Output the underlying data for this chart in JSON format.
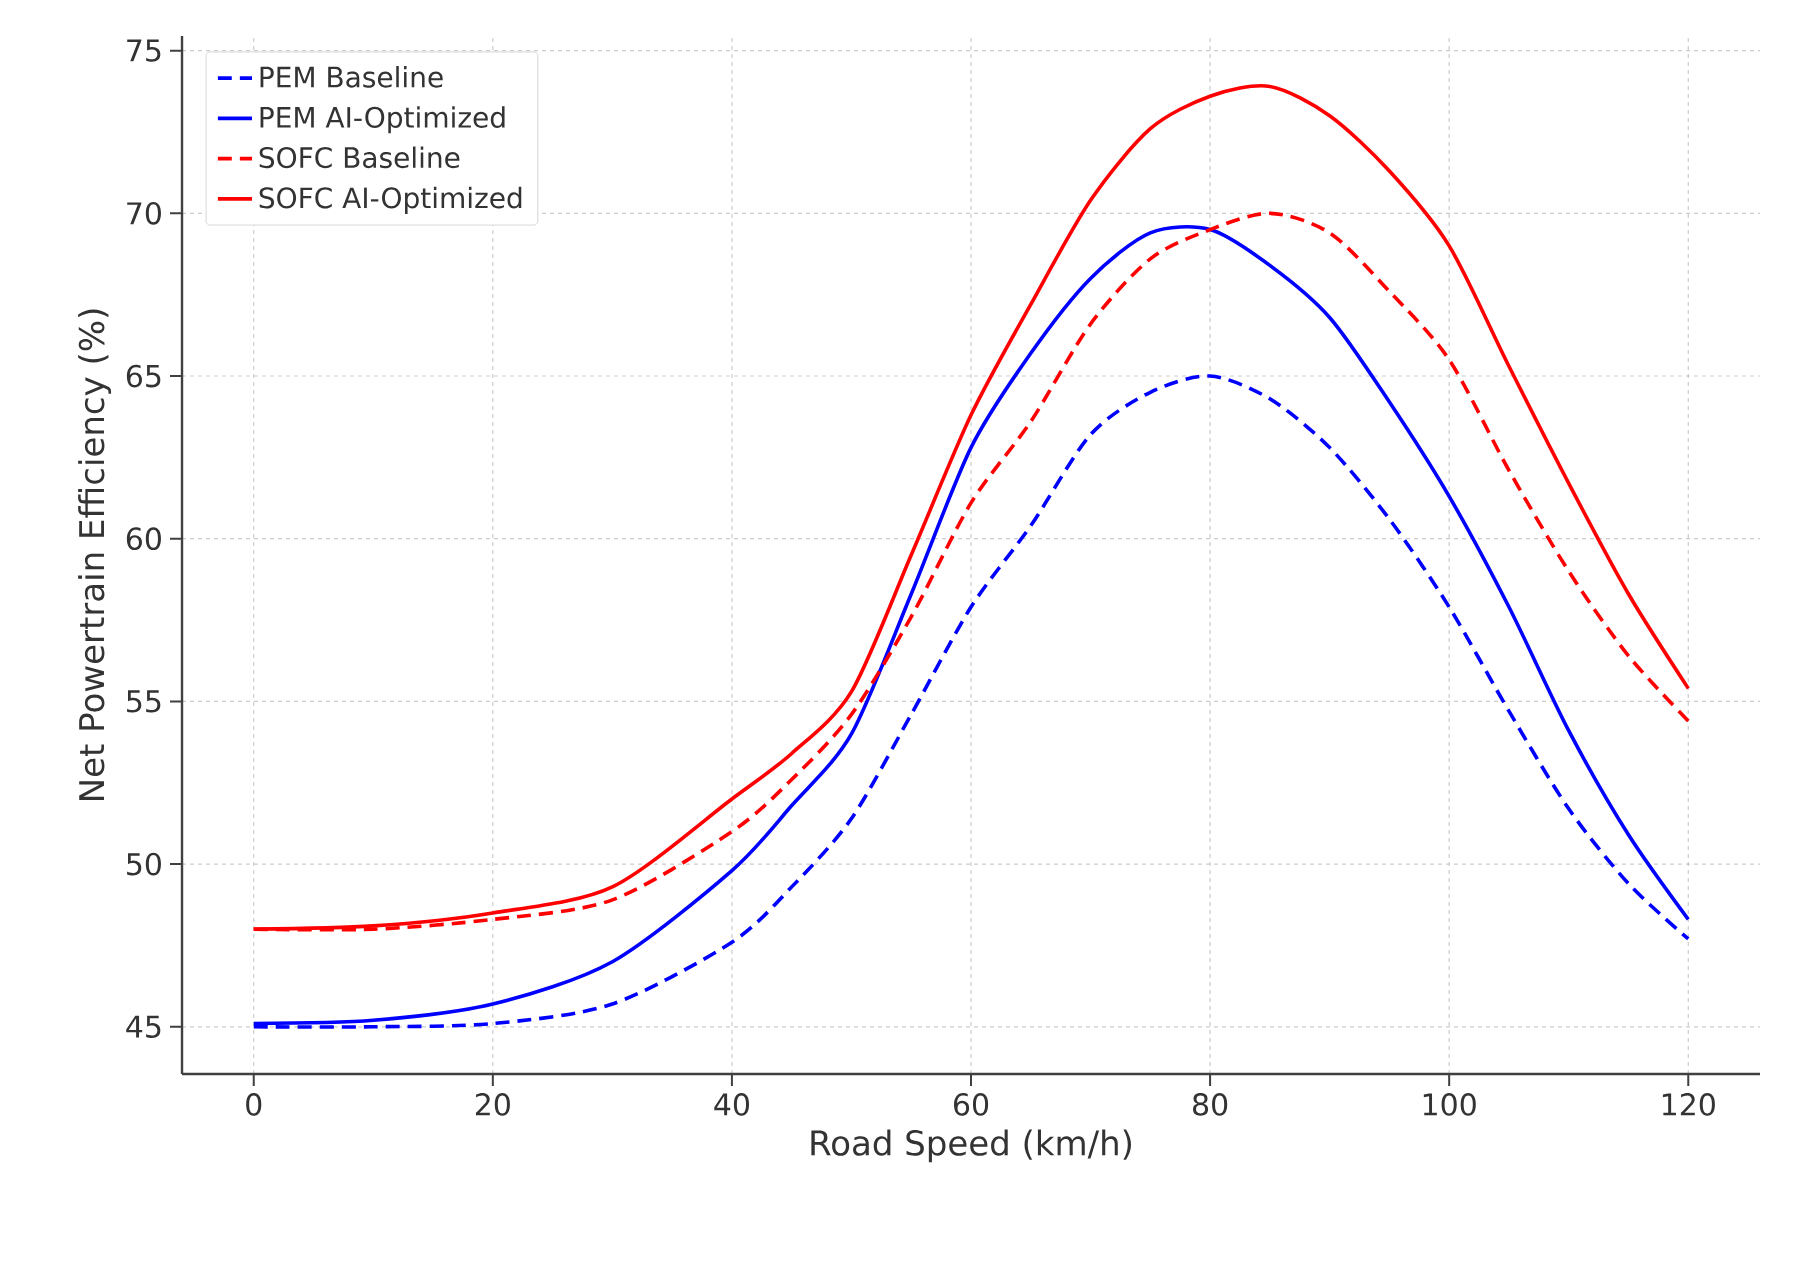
{
  "chart_data": {
    "type": "line",
    "xlabel": "Road Speed (km/h)",
    "ylabel": "Net Powertrain Efficiency (%)",
    "x": [
      0,
      10,
      20,
      30,
      40,
      45,
      50,
      55,
      60,
      65,
      70,
      75,
      80,
      85,
      90,
      95,
      100,
      105,
      110,
      115,
      120
    ],
    "xlim": [
      -6,
      126
    ],
    "xticks": [
      0,
      20,
      40,
      60,
      80,
      100,
      120
    ],
    "ylim": [
      43.55,
      75.45
    ],
    "yticks": [
      45,
      50,
      55,
      60,
      65,
      70,
      75
    ],
    "grid": true,
    "legend": "top left",
    "series": [
      {
        "name": "PEM Baseline",
        "color": "#0000ff",
        "line_style": "dashed",
        "values": [
          45.0,
          45.0,
          45.1,
          45.7,
          47.6,
          49.3,
          51.4,
          54.6,
          57.9,
          60.4,
          63.2,
          64.5,
          65.0,
          64.3,
          62.8,
          60.6,
          57.9,
          54.7,
          51.7,
          49.4,
          47.7
        ]
      },
      {
        "name": "PEM AI-Optimized",
        "color": "#0000ff",
        "line_style": "solid",
        "values": [
          45.1,
          45.2,
          45.7,
          47.0,
          49.8,
          51.8,
          54.0,
          58.3,
          62.8,
          65.7,
          68.0,
          69.4,
          69.5,
          68.4,
          66.8,
          64.2,
          61.3,
          57.9,
          54.1,
          50.9,
          48.3
        ]
      },
      {
        "name": "SOFC Baseline",
        "color": "#ff0000",
        "line_style": "dashed",
        "values": [
          48.0,
          48.0,
          48.3,
          48.9,
          51.0,
          52.6,
          54.6,
          57.6,
          61.1,
          63.6,
          66.6,
          68.6,
          69.5,
          70.0,
          69.4,
          67.6,
          65.5,
          62.1,
          59.0,
          56.4,
          54.4
        ]
      },
      {
        "name": "SOFC AI-Optimized",
        "color": "#ff0000",
        "line_style": "solid",
        "values": [
          48.0,
          48.1,
          48.5,
          49.3,
          52.0,
          53.4,
          55.3,
          59.5,
          63.8,
          67.2,
          70.4,
          72.6,
          73.6,
          73.9,
          73.0,
          71.3,
          69.0,
          65.3,
          61.7,
          58.3,
          55.4
        ]
      }
    ]
  }
}
